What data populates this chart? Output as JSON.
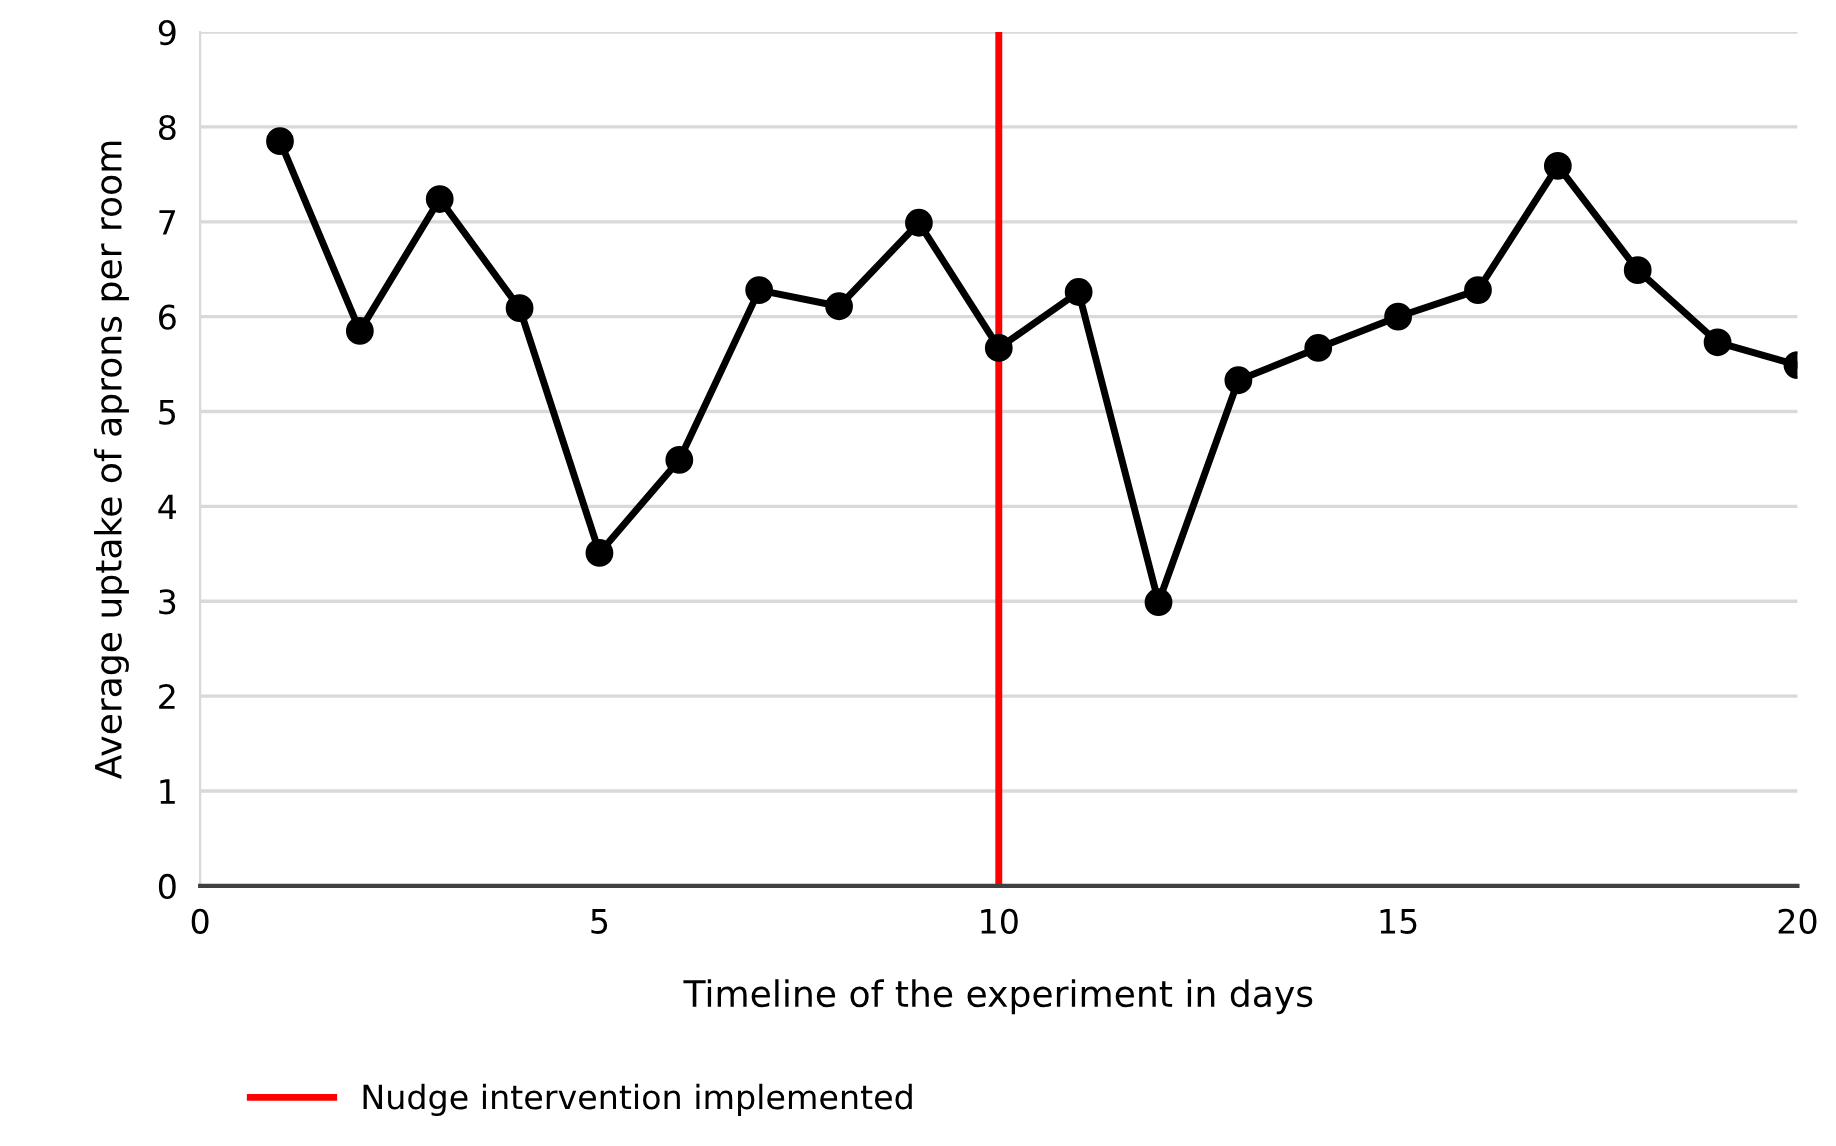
{
  "chart_data": {
    "type": "line",
    "xlabel": "Timeline of the experiment in days",
    "ylabel": "Average uptake of aprons per room",
    "x": [
      1,
      2,
      3,
      4,
      5,
      6,
      7,
      8,
      9,
      10,
      11,
      12,
      13,
      14,
      15,
      16,
      17,
      18,
      19,
      20
    ],
    "series": [
      {
        "color": "#000000",
        "values": [
          7.85,
          5.85,
          7.24,
          6.09,
          3.51,
          4.49,
          6.28,
          6.11,
          6.99,
          5.67,
          6.26,
          2.99,
          5.33,
          5.67,
          6.0,
          6.28,
          7.59,
          6.49,
          5.73,
          5.49
        ]
      }
    ],
    "marker": "circle",
    "line_style": "solid",
    "xlim": [
      0,
      20
    ],
    "xticks": [
      0,
      5,
      10,
      15,
      20
    ],
    "ylim": [
      0,
      9
    ],
    "yticks": [
      0,
      1,
      2,
      3,
      4,
      5,
      6,
      7,
      8,
      9
    ],
    "grid": "y",
    "legend": "bottom left",
    "ref_lines": [
      {
        "axis": "x",
        "value": 10,
        "label": "Nudge intervention implemented",
        "color": "#ff0000"
      }
    ]
  }
}
